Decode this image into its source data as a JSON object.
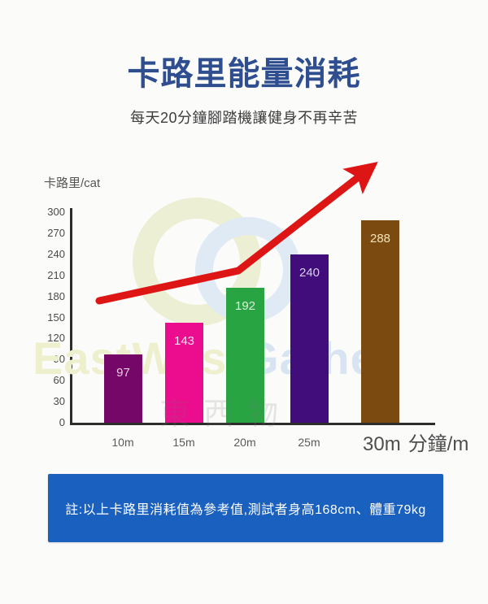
{
  "header": {
    "title": "卡路里能量消耗",
    "subtitle": "每天20分鐘腳踏機讓健身不再辛苦"
  },
  "chart_data": {
    "type": "bar",
    "title": "卡路里能量消耗",
    "y_axis_label": "卡路里/cat",
    "x_axis_unit": "分鐘/m",
    "categories": [
      "10m",
      "15m",
      "20m",
      "25m",
      "30m"
    ],
    "values": [
      97,
      143,
      192,
      240,
      288
    ],
    "bar_colors": [
      "#750768",
      "#ec0c8e",
      "#28a443",
      "#410d7a",
      "#7b4a10"
    ],
    "value_label_colors": [
      "#e9cbe2",
      "#ffdef0",
      "#dff0de",
      "#d9cdee",
      "#f3e3b8"
    ],
    "y_ticks": [
      0,
      30,
      60,
      90,
      120,
      150,
      180,
      210,
      240,
      270,
      300
    ],
    "ylim": [
      0,
      300
    ],
    "grid": false,
    "legend": false,
    "annotations": [
      {
        "type": "trend-arrow",
        "direction": "up-right",
        "meaning": "rising calorie burn"
      }
    ]
  },
  "watermark": {
    "en_part1": "EastWest",
    "en_part2": "Gather",
    "cn": "東西物"
  },
  "footer": {
    "note": "註:以上卡路里消耗值為參考值,測試者身高168cm、體重79kg"
  },
  "colors": {
    "title_text": "#2e4e8f",
    "footer_bg": "#1a60bf",
    "arrow": "#dd1514",
    "axis": "#2d2d2d"
  }
}
